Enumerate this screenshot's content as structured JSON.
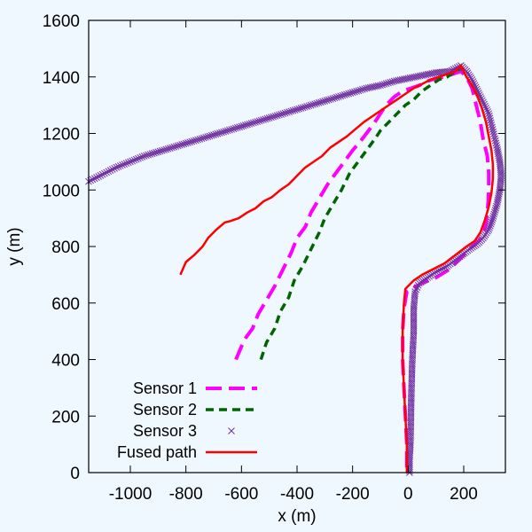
{
  "chart_data": {
    "type": "line",
    "xlabel": "x (m)",
    "ylabel": "y (m)",
    "xlim": [
      -1150,
      350
    ],
    "ylim": [
      0,
      1600
    ],
    "xticks": [
      -1000,
      -800,
      -600,
      -400,
      -200,
      0,
      200
    ],
    "yticks": [
      0,
      200,
      400,
      600,
      800,
      1000,
      1200,
      1400,
      1600
    ],
    "xtick_labels": [
      "-1000",
      "-800",
      "-600",
      "-400",
      "-200",
      "0",
      "200"
    ],
    "ytick_labels": [
      "0",
      "200",
      "400",
      "600",
      "800",
      "1000",
      "1200",
      "1400",
      "1600"
    ],
    "grid": false,
    "legend_position": "bottom-left",
    "series": [
      {
        "name": "Sensor 1",
        "color": "#ff00ff",
        "style": "long-dash",
        "x": [
          -620,
          -590,
          -560,
          -540,
          -510,
          -480,
          -450,
          -420,
          -400,
          -370,
          -350,
          -320,
          -290,
          -260,
          -230,
          -200,
          -170,
          -150,
          -120,
          -100,
          -80,
          -50,
          -20,
          10,
          40,
          70,
          100,
          130,
          160,
          190,
          210,
          230,
          245,
          260,
          270,
          285,
          290,
          290,
          288,
          285,
          280,
          270,
          255,
          230,
          200,
          150,
          100,
          50,
          20,
          -5,
          -15,
          -20,
          -20,
          -15,
          -10,
          -5,
          -5
        ],
        "y": [
          400,
          470,
          510,
          560,
          610,
          660,
          720,
          780,
          830,
          870,
          920,
          970,
          1020,
          1060,
          1100,
          1140,
          1175,
          1200,
          1240,
          1270,
          1300,
          1330,
          1350,
          1360,
          1370,
          1385,
          1395,
          1400,
          1410,
          1420,
          1400,
          1360,
          1300,
          1240,
          1180,
          1120,
          1060,
          1000,
          960,
          920,
          880,
          840,
          820,
          800,
          770,
          720,
          690,
          670,
          655,
          640,
          580,
          500,
          400,
          300,
          200,
          100,
          0
        ]
      },
      {
        "name": "Sensor 2",
        "color": "#006400",
        "style": "short-dash",
        "x": [
          -530,
          -510,
          -480,
          -460,
          -430,
          -410,
          -380,
          -350,
          -320,
          -300,
          -270,
          -240,
          -210,
          -180,
          -150,
          -120,
          -100,
          -70,
          -40,
          -10,
          20,
          50,
          80,
          110,
          140,
          170,
          190
        ],
        "y": [
          400,
          460,
          510,
          570,
          620,
          680,
          730,
          790,
          850,
          900,
          950,
          1000,
          1060,
          1100,
          1140,
          1180,
          1210,
          1240,
          1270,
          1300,
          1320,
          1350,
          1370,
          1390,
          1400,
          1420,
          1430
        ]
      },
      {
        "name": "Sensor 3",
        "color": "#7030a0",
        "style": "x-markers",
        "x": [
          -1150,
          -1100,
          -1050,
          -1000,
          -950,
          -900,
          -850,
          -800,
          -750,
          -700,
          -650,
          -600,
          -550,
          -500,
          -450,
          -400,
          -350,
          -300,
          -250,
          -200,
          -150,
          -100,
          -50,
          0,
          50,
          100,
          150,
          190,
          210,
          230,
          250,
          270,
          290,
          300,
          310,
          320,
          330,
          335,
          330,
          320,
          305,
          290,
          270,
          250,
          220,
          180,
          140,
          100,
          70,
          40,
          25,
          20,
          20,
          15,
          12,
          10,
          8,
          5,
          5
        ],
        "y": [
          1030,
          1055,
          1080,
          1100,
          1120,
          1135,
          1150,
          1165,
          1180,
          1195,
          1210,
          1225,
          1240,
          1255,
          1270,
          1285,
          1300,
          1315,
          1330,
          1345,
          1360,
          1370,
          1385,
          1395,
          1405,
          1415,
          1420,
          1440,
          1420,
          1390,
          1350,
          1310,
          1270,
          1230,
          1190,
          1150,
          1100,
          1050,
          1000,
          950,
          900,
          860,
          830,
          810,
          790,
          760,
          730,
          710,
          690,
          670,
          640,
          580,
          500,
          400,
          300,
          200,
          100,
          50,
          0
        ]
      },
      {
        "name": "Fused path",
        "color": "#ff0000",
        "style": "solid-jagged",
        "x": [
          -820,
          -800,
          -770,
          -740,
          -720,
          -690,
          -660,
          -640,
          -610,
          -580,
          -550,
          -520,
          -490,
          -460,
          -430,
          -400,
          -370,
          -340,
          -310,
          -280,
          -250,
          -220,
          -190,
          -160,
          -130,
          -100,
          -70,
          -40,
          -10,
          20,
          50,
          80,
          110,
          140,
          170,
          190,
          210,
          230,
          250,
          265,
          280,
          290,
          300,
          305,
          305,
          300,
          290,
          275,
          260,
          240,
          210,
          170,
          130,
          90,
          50,
          20,
          0,
          -10,
          -15,
          -20,
          -20,
          -15,
          -10,
          -5,
          -5
        ],
        "y": [
          700,
          745,
          770,
          800,
          830,
          860,
          885,
          890,
          900,
          920,
          935,
          960,
          975,
          1000,
          1020,
          1050,
          1080,
          1100,
          1120,
          1150,
          1170,
          1190,
          1215,
          1240,
          1260,
          1280,
          1300,
          1320,
          1340,
          1360,
          1375,
          1390,
          1400,
          1410,
          1420,
          1440,
          1400,
          1370,
          1330,
          1290,
          1240,
          1190,
          1140,
          1090,
          1040,
          990,
          940,
          890,
          850,
          820,
          800,
          770,
          740,
          720,
          700,
          680,
          660,
          650,
          600,
          500,
          400,
          300,
          200,
          100,
          0
        ]
      }
    ]
  }
}
